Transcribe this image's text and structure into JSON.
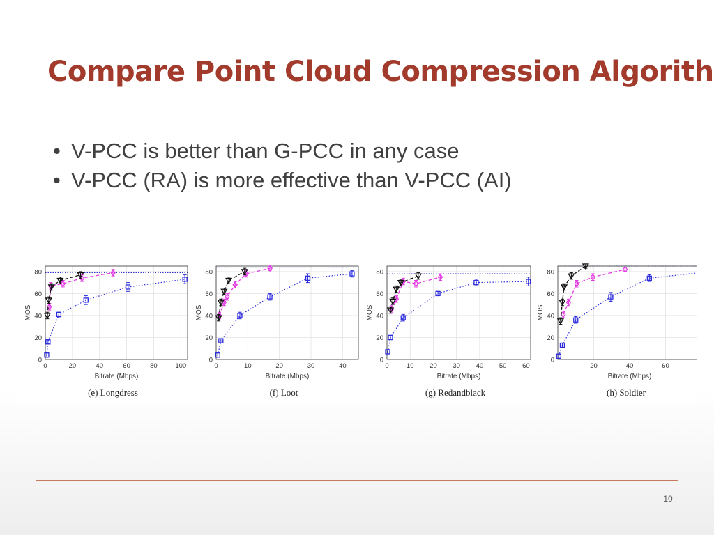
{
  "slide": {
    "title": "Compare Point Cloud Compression Algorithm",
    "bullets": [
      "V-PCC is better than G-PCC in any case",
      "V-PCC (RA) is more effective than V-PCC (AI)"
    ],
    "page_number": "10"
  },
  "colors": {
    "title": "#a23b2c",
    "series_square": "#2b2bdd",
    "series_diamond": "#e33be3",
    "series_triangle": "#111111",
    "reference_line": "#3333cc"
  },
  "chart_data": [
    {
      "type": "line",
      "caption": "(e) Longdress",
      "xlabel": "Bitrate (Mbps)",
      "ylabel": "MOS",
      "xlim": [
        0,
        105
      ],
      "ylim": [
        0,
        85
      ],
      "xticks": [
        0,
        20,
        40,
        60,
        80,
        100
      ],
      "yticks": [
        0,
        20,
        40,
        60,
        80
      ],
      "grid": true,
      "reference_line_y": 79,
      "series": [
        {
          "marker": "square",
          "style": "dotted",
          "x": [
            1,
            2,
            10,
            30,
            61,
            103
          ],
          "y": [
            4,
            16,
            41,
            54,
            66,
            73
          ],
          "err": [
            2,
            2,
            3,
            4,
            4,
            4
          ]
        },
        {
          "marker": "diamond",
          "style": "dashed",
          "x": [
            3,
            4,
            13,
            27,
            50
          ],
          "y": [
            48,
            67,
            69,
            74,
            79
          ],
          "err": [
            3,
            3,
            3,
            3,
            3
          ]
        },
        {
          "marker": "triangle",
          "style": "dashed",
          "x": [
            1.5,
            2.5,
            4.5,
            11,
            26
          ],
          "y": [
            40,
            54,
            66,
            72,
            77
          ],
          "err": [
            3,
            3,
            3,
            3,
            3
          ]
        }
      ]
    },
    {
      "type": "line",
      "caption": "(f) Loot",
      "xlabel": "Bitrate (Mbps)",
      "ylabel": "MOS",
      "xlim": [
        0,
        45
      ],
      "ylim": [
        0,
        85
      ],
      "xticks": [
        0,
        10,
        20,
        30,
        40
      ],
      "yticks": [
        0,
        20,
        40,
        60,
        80
      ],
      "grid": true,
      "reference_line_y": 84,
      "series": [
        {
          "marker": "square",
          "style": "dotted",
          "x": [
            0.5,
            1.5,
            7.5,
            17,
            29,
            43
          ],
          "y": [
            4,
            17,
            40,
            57,
            74,
            78
          ],
          "err": [
            2,
            2,
            3,
            3,
            4,
            3
          ]
        },
        {
          "marker": "diamond",
          "style": "dashed",
          "x": [
            1,
            2.5,
            3.5,
            6,
            9.5,
            17
          ],
          "y": [
            40,
            52,
            57,
            68,
            78,
            83
          ],
          "err": [
            3,
            3,
            3,
            3,
            3,
            2
          ]
        },
        {
          "marker": "triangle",
          "style": "dashed",
          "x": [
            0.8,
            1.5,
            2.5,
            4,
            9
          ],
          "y": [
            38,
            52,
            62,
            72,
            80
          ],
          "err": [
            3,
            3,
            3,
            3,
            3
          ]
        }
      ]
    },
    {
      "type": "line",
      "caption": "(g) Redandblack",
      "xlabel": "Bitrate (Mbps)",
      "ylabel": "MOS",
      "xlim": [
        0,
        62
      ],
      "ylim": [
        0,
        85
      ],
      "xticks": [
        0,
        10,
        20,
        30,
        40,
        50,
        60
      ],
      "yticks": [
        0,
        20,
        40,
        60,
        80
      ],
      "grid": true,
      "reference_line_y": 78,
      "series": [
        {
          "marker": "square",
          "style": "dotted",
          "x": [
            0.3,
            1.5,
            7,
            22,
            38.5,
            61
          ],
          "y": [
            7,
            20,
            38,
            60,
            70,
            71
          ],
          "err": [
            2,
            2,
            3,
            2,
            3,
            4
          ]
        },
        {
          "marker": "diamond",
          "style": "dashed",
          "x": [
            2,
            4,
            7,
            12.5,
            23
          ],
          "y": [
            46,
            55,
            71,
            69,
            75
          ],
          "err": [
            3,
            3,
            3,
            3,
            3
          ]
        },
        {
          "marker": "triangle",
          "style": "dashed",
          "x": [
            1.5,
            2.5,
            4,
            6,
            13.5
          ],
          "y": [
            45,
            53,
            64,
            70,
            76
          ],
          "err": [
            3,
            3,
            3,
            3,
            3
          ]
        }
      ]
    },
    {
      "type": "line",
      "caption": "(h) Soldier",
      "xlabel": "Bitrate (Mbps)",
      "ylabel": "MOS",
      "xlim": [
        0,
        80
      ],
      "ylim": [
        0,
        85
      ],
      "xticks": [
        20,
        40,
        60
      ],
      "yticks": [
        0,
        20,
        40,
        60,
        80
      ],
      "grid": true,
      "reference_line_y": 85,
      "series": [
        {
          "marker": "square",
          "style": "dotted",
          "x": [
            0.5,
            2.5,
            10,
            29.5,
            51,
            79
          ],
          "y": [
            3,
            13,
            36,
            57,
            74,
            79
          ],
          "err": [
            2,
            2,
            3,
            4,
            3,
            3
          ]
        },
        {
          "marker": "diamond",
          "style": "dashed",
          "x": [
            3,
            6,
            10.5,
            19.5,
            37.5
          ],
          "y": [
            41,
            52,
            69,
            75,
            82
          ],
          "err": [
            3,
            3,
            3,
            3,
            2
          ]
        },
        {
          "marker": "triangle",
          "style": "dashed",
          "x": [
            1.5,
            2.5,
            3.5,
            7.5,
            15.5
          ],
          "y": [
            35,
            52,
            66,
            76,
            85
          ],
          "err": [
            3,
            3,
            3,
            3,
            2
          ]
        }
      ]
    }
  ]
}
